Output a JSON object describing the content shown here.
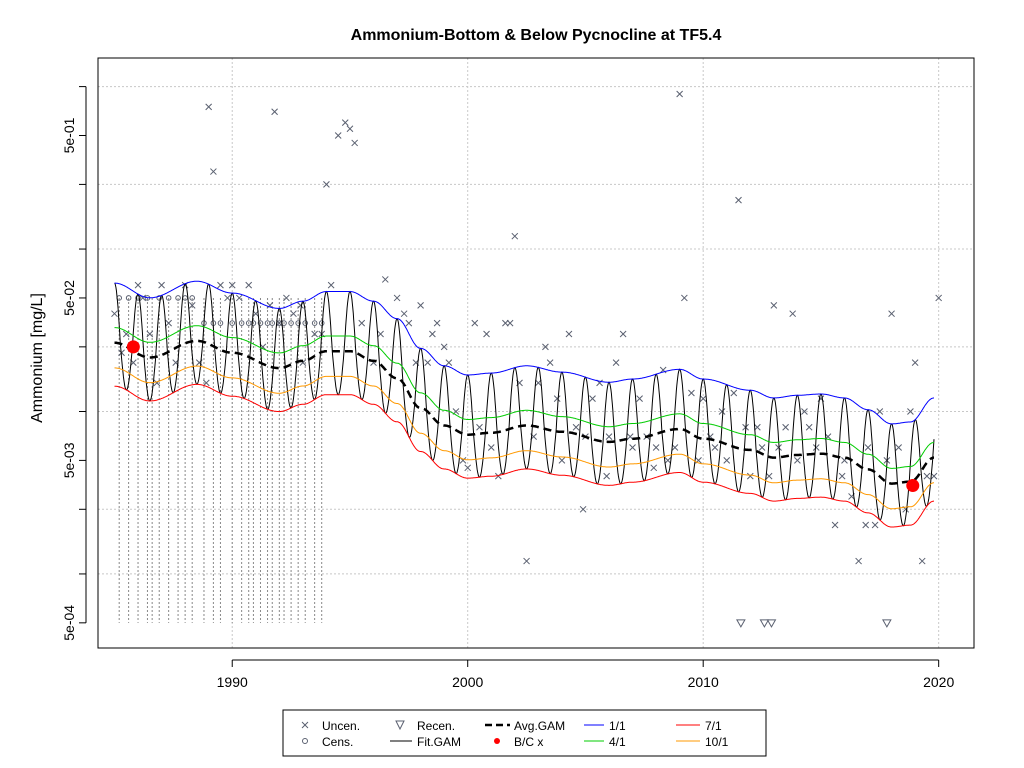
{
  "chart_data": {
    "type": "scatter",
    "title": "Ammonium-Bottom & Below Pycnocline at TF5.4",
    "xlabel": "",
    "ylabel": "Ammonium [mg/L]",
    "scale_y": "log",
    "xlim": [
      1984.3,
      2021.5
    ],
    "ylim": [
      0.00035,
      1.5
    ],
    "x_ticks": [
      1990,
      2000,
      2010,
      2020
    ],
    "y_ticks": [
      {
        "value": 0.0005,
        "label": "5e-04"
      },
      {
        "value": 0.005,
        "label": "5e-03"
      },
      {
        "value": 0.05,
        "label": "5e-02"
      },
      {
        "value": 0.5,
        "label": "5e-01"
      }
    ],
    "y_grid": [
      0.00025,
      0.001,
      0.0025,
      0.01,
      0.025,
      0.1,
      0.25,
      1.0
    ],
    "grid": true,
    "legend_position": "bottom",
    "legend": [
      {
        "label": "Uncen.",
        "symbol": "x"
      },
      {
        "label": "Cens.",
        "symbol": "circle"
      },
      {
        "label": "Recen.",
        "symbol": "triangle-down"
      },
      {
        "label": "Fit.GAM",
        "symbol": "line",
        "color": "#000000"
      },
      {
        "label": "Avg.GAM",
        "symbol": "dashed",
        "color": "#000000"
      },
      {
        "label": "B/C x",
        "symbol": "dot",
        "color": "#ff0000"
      },
      {
        "label": "1/1",
        "symbol": "line",
        "color": "#0000ff"
      },
      {
        "label": "4/1",
        "symbol": "line",
        "color": "#00cc00"
      },
      {
        "label": "7/1",
        "symbol": "line",
        "color": "#ff0000"
      },
      {
        "label": "10/1",
        "symbol": "line",
        "color": "#ff9900"
      }
    ],
    "colors": {
      "points": "#5a6070",
      "fit": "#000000",
      "avg": "#000000",
      "s1_1": "#0000ff",
      "s4_1": "#00cc00",
      "s7_1": "#ff0000",
      "s10_1": "#ff9900",
      "bc": "#ff0000",
      "grid": "#c8c8c8"
    },
    "trend_knots": {
      "x": [
        1985.0,
        1986.5,
        1988.5,
        1990.0,
        1992.0,
        1993.0,
        1994.0,
        1995.0,
        1996.0,
        1997.0,
        1998.0,
        1999.0,
        2000.0,
        2001.0,
        2002.5,
        2004.0,
        2006.0,
        2007.0,
        2009.0,
        2010.0,
        2012.0,
        2013.0,
        2014.0,
        2015.0,
        2016.0,
        2017.0,
        2018.0,
        2018.8,
        2019.8
      ],
      "y": [
        0.0265,
        0.0215,
        0.0272,
        0.023,
        0.0185,
        0.0205,
        0.0235,
        0.0235,
        0.0205,
        0.016,
        0.0105,
        0.0082,
        0.0072,
        0.0074,
        0.0082,
        0.0075,
        0.0065,
        0.0068,
        0.0078,
        0.0068,
        0.0058,
        0.0052,
        0.0054,
        0.0055,
        0.0052,
        0.0044,
        0.0036,
        0.0037,
        0.0052
      ]
    },
    "avg_gam_offset_factor": 1.0,
    "seasonal_curves": [
      {
        "name": "1/1",
        "factor": 2.33
      },
      {
        "name": "4/1",
        "factor": 1.24
      },
      {
        "name": "7/1",
        "factor": 0.54
      },
      {
        "name": "10/1",
        "factor": 0.7
      }
    ],
    "bc_points": [
      {
        "x": 1985.8,
        "y": 0.025
      },
      {
        "x": 2018.9,
        "y": 0.0035
      }
    ],
    "uncensored": [
      [
        1985.0,
        0.04
      ],
      [
        1985.3,
        0.023
      ],
      [
        1985.5,
        0.03
      ],
      [
        1985.8,
        0.02
      ],
      [
        1986.0,
        0.06
      ],
      [
        1986.2,
        0.05
      ],
      [
        1986.5,
        0.03
      ],
      [
        1986.8,
        0.015
      ],
      [
        1987.0,
        0.06
      ],
      [
        1987.3,
        0.035
      ],
      [
        1987.6,
        0.02
      ],
      [
        1988.0,
        0.06
      ],
      [
        1988.3,
        0.045
      ],
      [
        1988.6,
        0.02
      ],
      [
        1988.9,
        0.015
      ],
      [
        1989.0,
        0.75
      ],
      [
        1989.2,
        0.3
      ],
      [
        1989.5,
        0.06
      ],
      [
        1989.8,
        0.05
      ],
      [
        1990.0,
        0.06
      ],
      [
        1990.3,
        0.05
      ],
      [
        1990.7,
        0.06
      ],
      [
        1991.0,
        0.04
      ],
      [
        1991.3,
        0.025
      ],
      [
        1991.6,
        0.045
      ],
      [
        1991.8,
        0.7
      ],
      [
        1992.0,
        0.035
      ],
      [
        1992.3,
        0.05
      ],
      [
        1992.6,
        0.04
      ],
      [
        1992.9,
        0.045
      ],
      [
        1993.0,
        0.02
      ],
      [
        1993.5,
        0.03
      ],
      [
        1993.8,
        0.03
      ],
      [
        1994.0,
        0.25
      ],
      [
        1994.2,
        0.06
      ],
      [
        1994.5,
        0.5
      ],
      [
        1994.8,
        0.6
      ],
      [
        1995.0,
        0.55
      ],
      [
        1995.2,
        0.45
      ],
      [
        1995.5,
        0.035
      ],
      [
        1996.0,
        0.02
      ],
      [
        1996.3,
        0.03
      ],
      [
        1996.5,
        0.065
      ],
      [
        1997.0,
        0.05
      ],
      [
        1997.3,
        0.04
      ],
      [
        1997.5,
        0.035
      ],
      [
        1997.8,
        0.02
      ],
      [
        1998.0,
        0.045
      ],
      [
        1998.3,
        0.02
      ],
      [
        1998.5,
        0.03
      ],
      [
        1998.7,
        0.035
      ],
      [
        1999.0,
        0.025
      ],
      [
        1999.2,
        0.02
      ],
      [
        1999.5,
        0.01
      ],
      [
        1999.8,
        0.005
      ],
      [
        2000.0,
        0.0045
      ],
      [
        2000.3,
        0.035
      ],
      [
        2000.5,
        0.008
      ],
      [
        2000.8,
        0.03
      ],
      [
        2001.0,
        0.006
      ],
      [
        2001.3,
        0.004
      ],
      [
        2001.6,
        0.035
      ],
      [
        2001.8,
        0.035
      ],
      [
        2002.0,
        0.12
      ],
      [
        2002.2,
        0.015
      ],
      [
        2002.5,
        0.0012
      ],
      [
        2002.8,
        0.007
      ],
      [
        2003.0,
        0.015
      ],
      [
        2003.3,
        0.025
      ],
      [
        2003.5,
        0.02
      ],
      [
        2003.8,
        0.012
      ],
      [
        2004.0,
        0.005
      ],
      [
        2004.3,
        0.03
      ],
      [
        2004.6,
        0.008
      ],
      [
        2004.9,
        0.0025
      ],
      [
        2005.0,
        0.007
      ],
      [
        2005.3,
        0.012
      ],
      [
        2005.6,
        0.015
      ],
      [
        2005.9,
        0.004
      ],
      [
        2006.0,
        0.007
      ],
      [
        2006.3,
        0.02
      ],
      [
        2006.6,
        0.03
      ],
      [
        2006.9,
        0.007
      ],
      [
        2007.0,
        0.006
      ],
      [
        2007.3,
        0.012
      ],
      [
        2007.6,
        0.007
      ],
      [
        2007.9,
        0.0045
      ],
      [
        2008.0,
        0.006
      ],
      [
        2008.3,
        0.018
      ],
      [
        2008.5,
        0.005
      ],
      [
        2008.8,
        0.006
      ],
      [
        2009.0,
        0.9
      ],
      [
        2009.2,
        0.05
      ],
      [
        2009.5,
        0.013
      ],
      [
        2009.8,
        0.005
      ],
      [
        2010.0,
        0.012
      ],
      [
        2010.3,
        0.007
      ],
      [
        2010.5,
        0.006
      ],
      [
        2010.8,
        0.01
      ],
      [
        2011.0,
        0.005
      ],
      [
        2011.3,
        0.013
      ],
      [
        2011.5,
        0.2
      ],
      [
        2011.8,
        0.008
      ],
      [
        2012.0,
        0.004
      ],
      [
        2012.3,
        0.008
      ],
      [
        2012.5,
        0.006
      ],
      [
        2012.8,
        0.004
      ],
      [
        2013.0,
        0.045
      ],
      [
        2013.2,
        0.006
      ],
      [
        2013.5,
        0.008
      ],
      [
        2013.8,
        0.04
      ],
      [
        2014.0,
        0.005
      ],
      [
        2014.3,
        0.01
      ],
      [
        2014.5,
        0.008
      ],
      [
        2014.8,
        0.006
      ],
      [
        2015.0,
        0.012
      ],
      [
        2015.3,
        0.007
      ],
      [
        2015.6,
        0.002
      ],
      [
        2015.9,
        0.004
      ],
      [
        2016.0,
        0.005
      ],
      [
        2016.3,
        0.003
      ],
      [
        2016.6,
        0.0012
      ],
      [
        2016.9,
        0.002
      ],
      [
        2017.0,
        0.006
      ],
      [
        2017.3,
        0.002
      ],
      [
        2017.5,
        0.01
      ],
      [
        2017.8,
        0.005
      ],
      [
        2018.0,
        0.04
      ],
      [
        2018.3,
        0.006
      ],
      [
        2018.6,
        0.0025
      ],
      [
        2018.8,
        0.01
      ],
      [
        2019.0,
        0.02
      ],
      [
        2019.3,
        0.0012
      ],
      [
        2019.5,
        0.004
      ],
      [
        2019.8,
        0.004
      ],
      [
        2020.0,
        0.05
      ]
    ],
    "censored": [
      [
        1985.2,
        0.05
      ],
      [
        1985.6,
        0.05
      ],
      [
        1986.0,
        0.05
      ],
      [
        1986.4,
        0.05
      ],
      [
        1986.9,
        0.05
      ],
      [
        1987.3,
        0.05
      ],
      [
        1987.7,
        0.05
      ],
      [
        1988.0,
        0.05
      ],
      [
        1988.3,
        0.05
      ],
      [
        1988.8,
        0.035
      ],
      [
        1989.2,
        0.035
      ],
      [
        1989.5,
        0.035
      ],
      [
        1990.0,
        0.035
      ],
      [
        1990.4,
        0.035
      ],
      [
        1990.7,
        0.035
      ],
      [
        1990.9,
        0.035
      ],
      [
        1991.2,
        0.035
      ],
      [
        1991.5,
        0.035
      ],
      [
        1991.7,
        0.035
      ],
      [
        1992.0,
        0.035
      ],
      [
        1992.2,
        0.035
      ],
      [
        1992.5,
        0.035
      ],
      [
        1992.8,
        0.035
      ],
      [
        1993.1,
        0.035
      ],
      [
        1993.5,
        0.035
      ],
      [
        1993.8,
        0.035
      ]
    ],
    "recensored": [
      [
        2011.6,
        0.0005
      ],
      [
        2012.6,
        0.0005
      ],
      [
        2012.9,
        0.0005
      ],
      [
        2017.8,
        0.0005
      ]
    ],
    "drop_lines": [
      1985.2,
      1985.6,
      1986.0,
      1986.4,
      1986.6,
      1986.9,
      1987.3,
      1987.7,
      1988.0,
      1988.3,
      1988.8,
      1989.2,
      1989.5,
      1990.0,
      1990.4,
      1990.7,
      1990.9,
      1991.2,
      1991.5,
      1991.7,
      1992.0,
      1992.2,
      1992.5,
      1992.8,
      1993.1,
      1993.5,
      1993.8
    ]
  }
}
